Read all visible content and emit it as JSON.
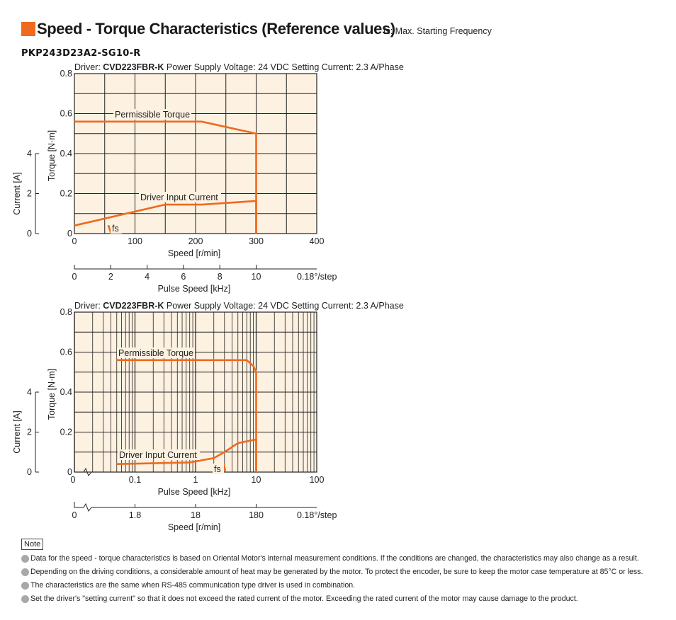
{
  "header": {
    "title": "Speed - Torque Characteristics (Reference values)",
    "subtitle": "fs: Max. Starting Frequency",
    "model": "PKP243D23A2-SG10-R"
  },
  "colors": {
    "accent": "#ee6a1e",
    "plot_bg": "#fdf1e1",
    "curve": "#ee6a1e",
    "grid": "#222222"
  },
  "chart_data": [
    {
      "type": "line",
      "x_scale": "linear",
      "driver_prefix": "Driver:",
      "driver_name": "CVD223FBR-K",
      "conditions": "Power Supply Voltage: 24 VDC  Setting Current: 2.3 A/Phase",
      "xlabel": "Speed [r/min]",
      "ylabel": "Torque [N·m]",
      "y2label": "Current [A]",
      "xlim": [
        0,
        400
      ],
      "ylim": [
        0,
        0.8
      ],
      "x_ticks": [
        "0",
        "100",
        "200",
        "300",
        "400"
      ],
      "y_ticks": [
        "0",
        "0.2",
        "0.4",
        "0.6",
        "0.8"
      ],
      "y2_ticks": [
        "0",
        "2",
        "4"
      ],
      "secondary_axis": {
        "label": "Pulse Speed [kHz]",
        "ticks": [
          "0",
          "2",
          "4",
          "6",
          "8",
          "10"
        ],
        "suffix": "0.18°/step"
      },
      "series": [
        {
          "name": "Permissible Torque",
          "x": [
            0,
            210,
            300,
            300
          ],
          "y": [
            0.56,
            0.56,
            0.5,
            0
          ]
        },
        {
          "name": "Driver Input Current",
          "x": [
            0,
            150,
            210,
            300,
            300
          ],
          "y": [
            0.04,
            0.145,
            0.145,
            0.163,
            0
          ]
        },
        {
          "name": "fs",
          "x": [
            56,
            60
          ],
          "y": [
            0.042,
            0.005
          ]
        }
      ]
    },
    {
      "type": "line",
      "x_scale": "log",
      "driver_prefix": "Driver:",
      "driver_name": "CVD223FBR-K",
      "conditions": "Power Supply Voltage: 24 VDC  Setting Current: 2.3 A/Phase",
      "xlabel": "Pulse Speed [kHz]",
      "ylabel": "Torque [N·m]",
      "y2label": "Current [A]",
      "xlim": [
        0.01,
        100
      ],
      "ylim": [
        0,
        0.8
      ],
      "x_ticks": [
        "0.1",
        "1",
        "10",
        "100"
      ],
      "y_ticks": [
        "0",
        "0.2",
        "0.4",
        "0.6",
        "0.8"
      ],
      "y2_ticks": [
        "0",
        "2",
        "4"
      ],
      "x_zero_label": "0",
      "secondary_axis": {
        "label": "Speed [r/min]",
        "zero_label": "0",
        "ticks": [
          "1.8",
          "18",
          "180"
        ],
        "suffix": "0.18°/step"
      },
      "series": [
        {
          "name": "Permissible Torque",
          "x": [
            0.05,
            7,
            9,
            10,
            10
          ],
          "y": [
            0.56,
            0.56,
            0.53,
            0.5,
            0
          ]
        },
        {
          "name": "Driver Input Current",
          "x": [
            0.05,
            0.8,
            2,
            3,
            5,
            10,
            10
          ],
          "y": [
            0.04,
            0.048,
            0.07,
            0.1,
            0.145,
            0.163,
            0
          ]
        },
        {
          "name": "fs",
          "x": [
            2.9,
            3.1
          ],
          "y": [
            0.042,
            0.005
          ]
        }
      ]
    }
  ],
  "notes": {
    "label": "Note",
    "items": [
      "Data for the speed - torque characteristics is based on Oriental Motor's internal measurement conditions. If the conditions are changed, the characteristics may also change as a result.",
      "Depending on the driving conditions, a considerable amount of heat may be generated by the motor. To protect the encoder, be sure to keep the motor case temperature at 85°C or less.",
      "The characteristics are the same when RS-485 communication type driver is used in combination.",
      "Set the driver's \"setting current\" so that it does not exceed the rated current of the motor. Exceeding the rated current of the motor may cause damage to the product."
    ]
  }
}
